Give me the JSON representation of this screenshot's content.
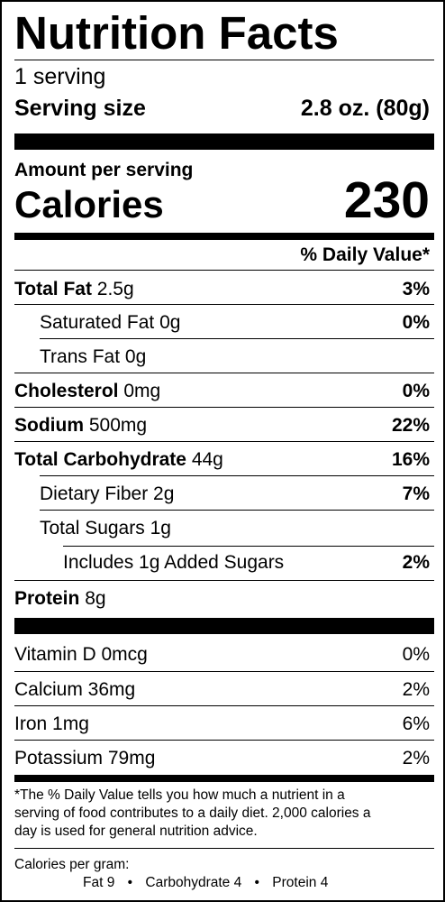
{
  "title": "Nutrition Facts",
  "servings": "1 serving",
  "serving_size": {
    "label": "Serving size",
    "value": "2.8 oz. (80g)"
  },
  "amount_per_serving": "Amount per serving",
  "calories": {
    "label": "Calories",
    "value": "230"
  },
  "daily_value_header": "% Daily Value*",
  "nutrients": [
    {
      "name": "Total Fat",
      "amount": "2.5g",
      "dv": "3%"
    },
    {
      "name": "Saturated Fat",
      "amount": "0g",
      "dv": "0%"
    },
    {
      "name": "Trans Fat",
      "amount": "0g",
      "dv": ""
    },
    {
      "name": "Cholesterol",
      "amount": "0mg",
      "dv": "0%"
    },
    {
      "name": "Sodium",
      "amount": "500mg",
      "dv": "22%"
    },
    {
      "name": "Total Carbohydrate",
      "amount": "44g",
      "dv": "16%"
    },
    {
      "name": "Dietary Fiber",
      "amount": "2g",
      "dv": "7%"
    },
    {
      "name": "Total Sugars",
      "amount": "1g",
      "dv": ""
    },
    {
      "name": "Includes 1g Added Sugars",
      "amount": "",
      "dv": "2%"
    },
    {
      "name": "Protein",
      "amount": "8g",
      "dv": ""
    }
  ],
  "vitamins": [
    {
      "name": "Vitamin D 0mcg",
      "dv": "0%"
    },
    {
      "name": "Calcium 36mg",
      "dv": "2%"
    },
    {
      "name": "Iron 1mg",
      "dv": "6%"
    },
    {
      "name": "Potassium 79mg",
      "dv": "2%"
    }
  ],
  "footnote": {
    "line1": "*The % Daily Value tells you how much a nutrient in a",
    "line2": "serving of food contributes to a daily diet. 2,000 calories a",
    "line3": "day is used for general nutrition advice."
  },
  "calories_per_gram": {
    "label": "Calories per gram:",
    "fat": "Fat 9",
    "carbohydrate": "Carbohydrate 4",
    "protein": "Protein 4",
    "separator": "•"
  }
}
